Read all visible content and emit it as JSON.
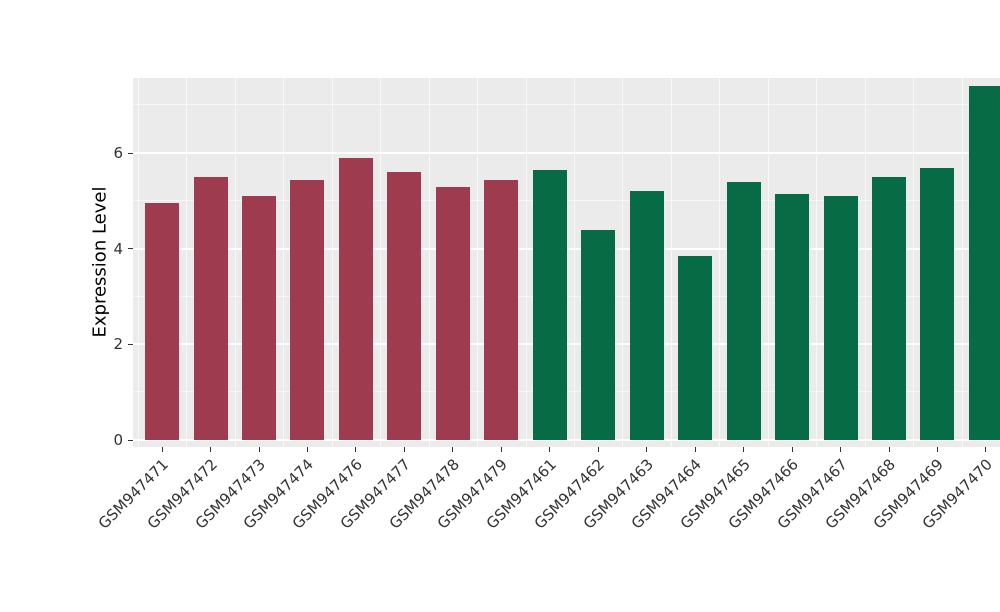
{
  "chart_data": {
    "type": "bar",
    "title": "",
    "xlabel": "",
    "ylabel": "Expression Level",
    "ylim": [
      0,
      7.57
    ],
    "yticks": [
      0,
      2,
      4,
      6
    ],
    "yticks_minor": [
      1,
      3,
      5,
      7
    ],
    "grid": "on",
    "legend": "none",
    "categories": [
      "GSM947471",
      "GSM947472",
      "GSM947473",
      "GSM947474",
      "GSM947476",
      "GSM947477",
      "GSM947478",
      "GSM947479",
      "GSM947461",
      "GSM947462",
      "GSM947463",
      "GSM947464",
      "GSM947465",
      "GSM947466",
      "GSM947467",
      "GSM947468",
      "GSM947469",
      "GSM947470"
    ],
    "values": [
      4.95,
      5.5,
      5.1,
      5.45,
      5.9,
      5.6,
      5.3,
      5.45,
      5.65,
      4.4,
      5.2,
      3.85,
      5.4,
      5.15,
      5.1,
      5.5,
      5.7,
      7.4
    ],
    "bar_groups": [
      "maroon",
      "maroon",
      "maroon",
      "maroon",
      "maroon",
      "maroon",
      "maroon",
      "maroon",
      "green",
      "green",
      "green",
      "green",
      "green",
      "green",
      "green",
      "green",
      "green",
      "green"
    ],
    "colors": {
      "maroon": "#9f3b4f",
      "green": "#076c45",
      "panel_bg": "#ebebeb",
      "grid": "#ffffff",
      "axis_text": "#333333"
    }
  }
}
